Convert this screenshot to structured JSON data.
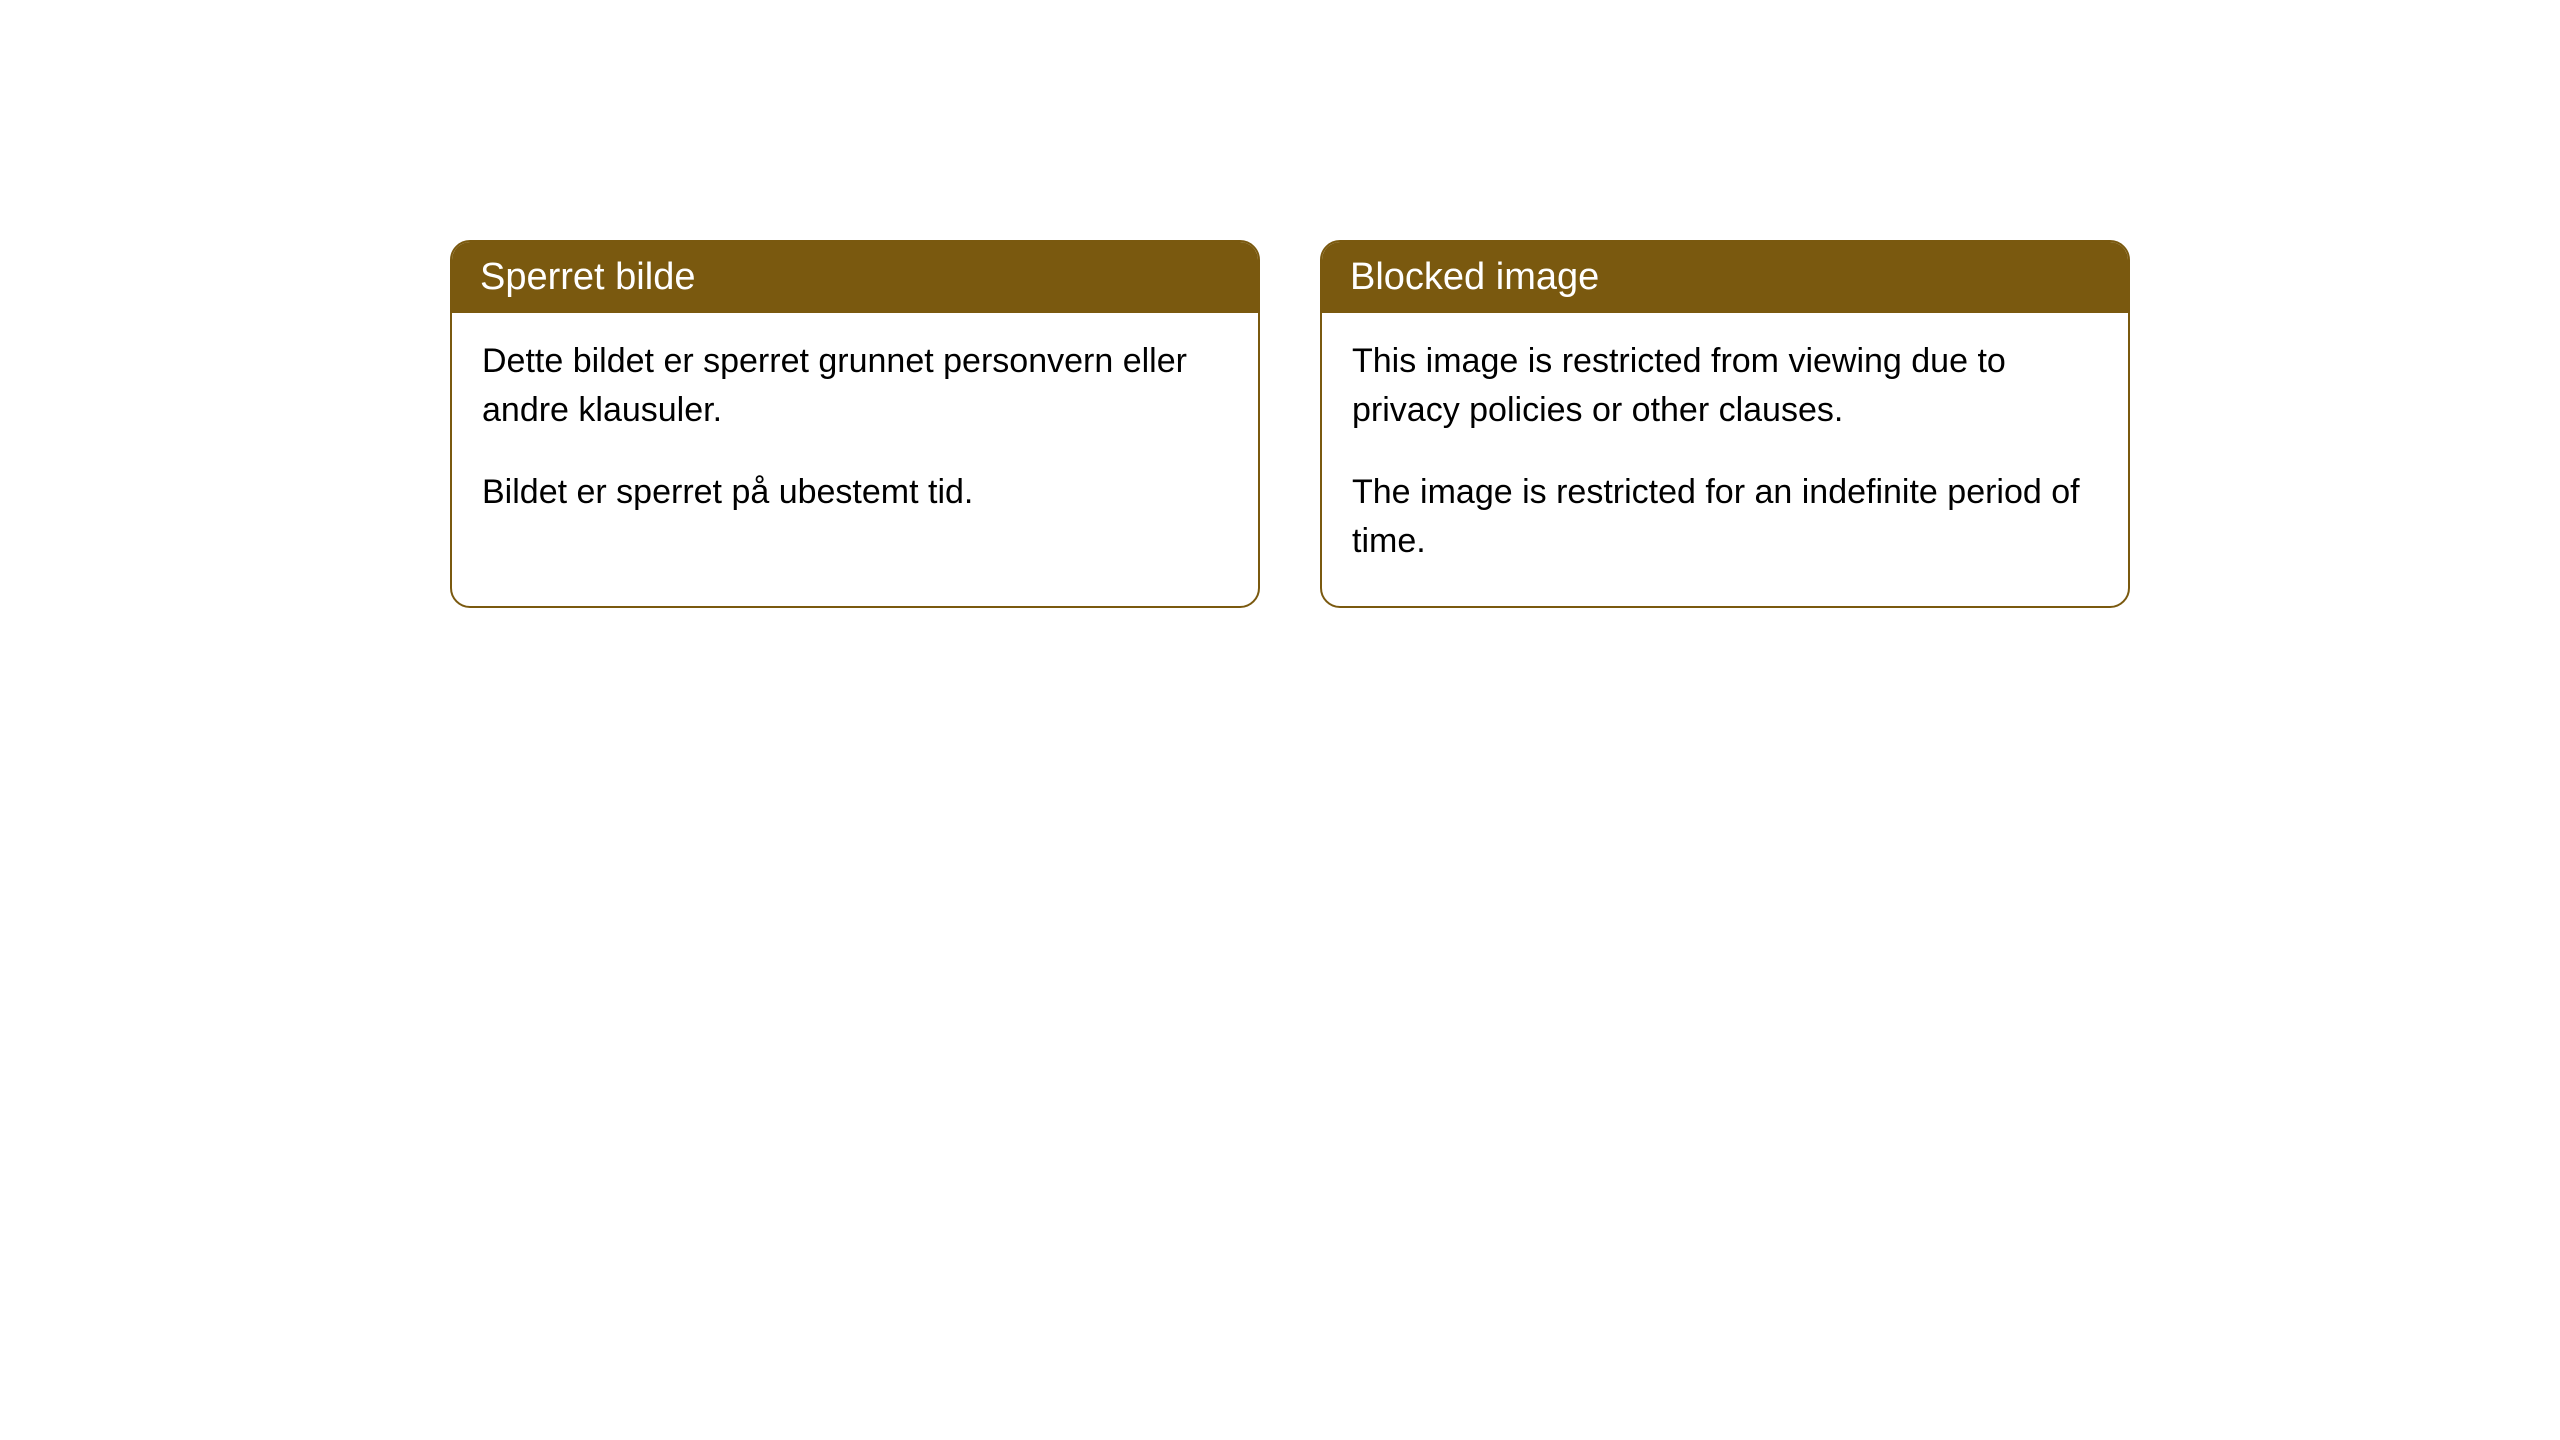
{
  "cards": {
    "norwegian": {
      "title": "Sperret bilde",
      "paragraph1": "Dette bildet er sperret grunnet personvern eller andre klausuler.",
      "paragraph2": "Bildet er sperret på ubestemt tid."
    },
    "english": {
      "title": "Blocked image",
      "paragraph1": "This image is restricted from viewing due to privacy policies or other clauses.",
      "paragraph2": "The image is restricted for an indefinite period of time."
    }
  },
  "style": {
    "header_background": "#7a590f",
    "header_text": "#ffffff",
    "border_color": "#7a590f",
    "body_text": "#000000",
    "page_background": "#ffffff",
    "border_radius": 20,
    "title_fontsize": 38,
    "body_fontsize": 34
  }
}
